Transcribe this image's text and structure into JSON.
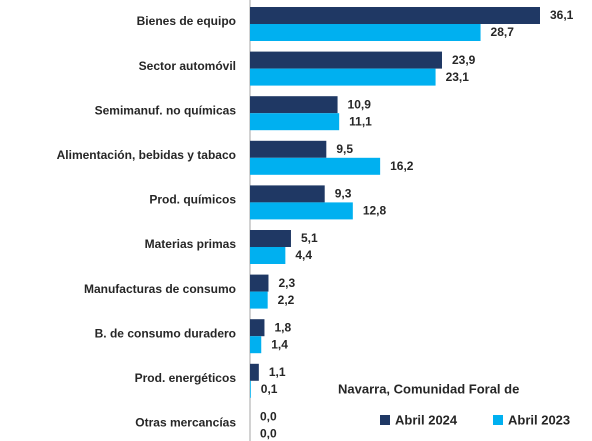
{
  "chart_data": {
    "type": "barh",
    "categories": [
      "Bienes de equipo",
      "Sector automóvil",
      "Semimanuf. no químicas",
      "Alimentación, bebidas y tabaco",
      "Prod. químicos",
      "Materias primas",
      "Manufacturas de consumo",
      "B. de consumo duradero",
      "Prod. energéticos",
      "Otras mercancías"
    ],
    "series": [
      {
        "name": "Abril 2024",
        "color": "#1f3864",
        "values": [
          36.1,
          23.9,
          10.9,
          9.5,
          9.3,
          5.1,
          2.3,
          1.8,
          1.1,
          0.0
        ],
        "value_labels": [
          "36,1",
          "23,9",
          "10,9",
          "9,5",
          "9,3",
          "5,1",
          "2,3",
          "1,8",
          "1,1",
          "0,0"
        ]
      },
      {
        "name": "Abril 2023",
        "color": "#00b0f0",
        "values": [
          28.7,
          23.1,
          11.1,
          16.2,
          12.8,
          4.4,
          2.2,
          1.4,
          0.1,
          0.0
        ],
        "value_labels": [
          "28,7",
          "23,1",
          "11,1",
          "16,2",
          "12,8",
          "4,4",
          "2,2",
          "1,4",
          "0,1",
          "0,0"
        ]
      }
    ],
    "annotation": "Navarra, Comunidad Foral de",
    "legend": "bottom-right"
  }
}
